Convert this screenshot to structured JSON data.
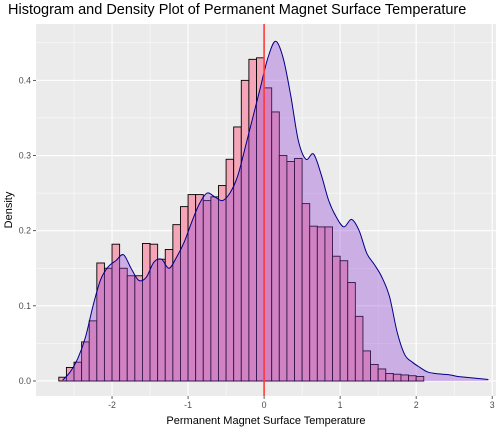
{
  "chart_data": {
    "type": "bar",
    "title": "Histogram and Density Plot of Permanent Magnet Surface Temperature",
    "xlabel": "Permanent Magnet Surface Temperature",
    "ylabel": "Density",
    "xlim": [
      -3.0,
      3.05
    ],
    "ylim": [
      -0.02,
      0.475
    ],
    "x_ticks": [
      -2,
      -1,
      0,
      1,
      2,
      3
    ],
    "y_ticks": [
      0.0,
      0.1,
      0.2,
      0.3,
      0.4
    ],
    "y_tick_labels": [
      "0.0",
      "0.1",
      "0.2",
      "0.3",
      "0.4"
    ],
    "grid": true,
    "legend": "none",
    "bin_start": -2.7,
    "bin_width": 0.1,
    "histogram_density": [
      0.005,
      0.018,
      0.025,
      0.052,
      0.08,
      0.157,
      0.15,
      0.182,
      0.15,
      0.14,
      0.14,
      0.183,
      0.182,
      0.162,
      0.175,
      0.208,
      0.232,
      0.248,
      0.248,
      0.24,
      0.245,
      0.26,
      0.295,
      0.338,
      0.4,
      0.428,
      0.43,
      0.39,
      0.358,
      0.3,
      0.292,
      0.296,
      0.236,
      0.206,
      0.205,
      0.205,
      0.166,
      0.16,
      0.131,
      0.086,
      0.04,
      0.022,
      0.016,
      0.01,
      0.009,
      0.008,
      0.007,
      0.006
    ],
    "density_curve": {
      "x": [
        -2.65,
        -2.55,
        -2.45,
        -2.35,
        -2.25,
        -2.15,
        -2.05,
        -1.95,
        -1.85,
        -1.75,
        -1.65,
        -1.55,
        -1.45,
        -1.35,
        -1.25,
        -1.15,
        -1.05,
        -0.95,
        -0.85,
        -0.75,
        -0.65,
        -0.55,
        -0.45,
        -0.35,
        -0.25,
        -0.15,
        -0.05,
        0.05,
        0.15,
        0.25,
        0.35,
        0.45,
        0.55,
        0.65,
        0.75,
        0.85,
        0.95,
        1.05,
        1.15,
        1.25,
        1.35,
        1.45,
        1.55,
        1.65,
        1.75,
        1.85,
        1.95,
        2.05,
        2.15,
        2.25,
        2.35,
        2.45,
        2.55,
        2.65,
        2.75,
        2.85,
        2.95
      ],
      "y": [
        0.001,
        0.012,
        0.03,
        0.058,
        0.1,
        0.135,
        0.152,
        0.16,
        0.168,
        0.15,
        0.134,
        0.138,
        0.158,
        0.162,
        0.15,
        0.165,
        0.185,
        0.212,
        0.236,
        0.25,
        0.245,
        0.24,
        0.25,
        0.272,
        0.31,
        0.35,
        0.39,
        0.43,
        0.452,
        0.43,
        0.38,
        0.32,
        0.295,
        0.302,
        0.275,
        0.24,
        0.218,
        0.205,
        0.215,
        0.2,
        0.17,
        0.155,
        0.138,
        0.112,
        0.065,
        0.035,
        0.025,
        0.018,
        0.012,
        0.01,
        0.009,
        0.008,
        0.006,
        0.005,
        0.004,
        0.003,
        0.002
      ]
    },
    "reference_line_x": 0,
    "colors": {
      "panel_background": "#ebebeb",
      "grid_line": "#ffffff",
      "histogram_fill": "#f4a6b8",
      "histogram_stroke": "#000000",
      "density_fill": "#8e3fd6",
      "density_stroke": "#00008b",
      "reference_line": "#ff3b3b"
    }
  }
}
